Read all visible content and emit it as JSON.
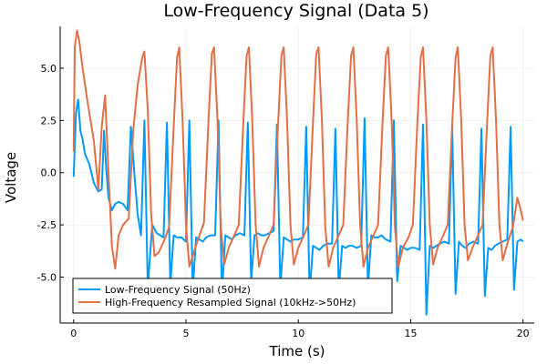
{
  "chart_data": {
    "type": "line",
    "title": "Low-Frequency Signal (Data 5)",
    "xlabel": "Time (s)",
    "ylabel": "Voltage",
    "xlim": [
      -0.6,
      20.5
    ],
    "ylim": [
      -7.2,
      7.0
    ],
    "x_ticks": [
      0,
      5,
      10,
      15,
      20
    ],
    "x_tick_labels": [
      "0",
      "5",
      "10",
      "15",
      "20"
    ],
    "y_ticks": [
      -5.0,
      -2.5,
      0.0,
      2.5,
      5.0
    ],
    "y_tick_labels": [
      "-5.0",
      "-2.5",
      "0.0",
      "2.5",
      "5.0"
    ],
    "grid": true,
    "legend_position": "bottom-left",
    "series": [
      {
        "name": "Low-Frequency Signal (50Hz)",
        "color": "#009AFA",
        "x": [
          0.0,
          0.1,
          0.2,
          0.3,
          0.4,
          0.5,
          0.7,
          0.9,
          1.1,
          1.25,
          1.35,
          1.45,
          1.55,
          1.7,
          1.85,
          2.0,
          2.2,
          2.4,
          2.55,
          2.7,
          2.85,
          3.0,
          3.15,
          3.3,
          3.5,
          3.7,
          3.85,
          4.0,
          4.15,
          4.3,
          4.45,
          4.6,
          4.8,
          5.0,
          5.15,
          5.3,
          5.45,
          5.6,
          5.75,
          5.9,
          6.1,
          6.3,
          6.45,
          6.6,
          6.75,
          6.9,
          7.05,
          7.2,
          7.4,
          7.6,
          7.75,
          7.9,
          8.05,
          8.2,
          8.35,
          8.5,
          8.7,
          8.9,
          9.05,
          9.2,
          9.35,
          9.5,
          9.65,
          9.8,
          10.0,
          10.2,
          10.35,
          10.5,
          10.65,
          10.8,
          10.95,
          11.1,
          11.3,
          11.5,
          11.65,
          11.8,
          11.95,
          12.1,
          12.25,
          12.4,
          12.6,
          12.8,
          12.95,
          13.1,
          13.25,
          13.4,
          13.55,
          13.7,
          13.9,
          14.1,
          14.25,
          14.4,
          14.55,
          14.7,
          14.85,
          15.0,
          15.2,
          15.4,
          15.55,
          15.7,
          15.85,
          16.0,
          16.15,
          16.3,
          16.5,
          16.7,
          16.85,
          17.0,
          17.15,
          17.3,
          17.45,
          17.6,
          17.8,
          18.0,
          18.15,
          18.3,
          18.45,
          18.6,
          18.75,
          18.9,
          19.1,
          19.3,
          19.45,
          19.6,
          19.75,
          19.9,
          20.0
        ],
        "y": [
          -0.2,
          2.8,
          3.5,
          2.0,
          1.6,
          0.9,
          0.4,
          -0.5,
          -0.9,
          -0.8,
          2.0,
          0.2,
          -1.2,
          -1.8,
          -1.5,
          -1.4,
          -1.5,
          -1.8,
          2.2,
          0.0,
          -2.0,
          -3.0,
          2.5,
          -5.5,
          -2.5,
          -2.9,
          -3.0,
          -3.1,
          2.4,
          -5.4,
          -3.0,
          -3.1,
          -3.1,
          -3.3,
          2.5,
          -5.6,
          -3.1,
          -3.2,
          -3.3,
          -3.1,
          -3.0,
          -3.0,
          2.5,
          -5.8,
          -3.0,
          -3.1,
          -3.2,
          -3.0,
          -2.9,
          -3.0,
          2.4,
          -5.2,
          -3.0,
          -2.9,
          -3.0,
          -3.0,
          -2.9,
          -2.8,
          2.3,
          -5.5,
          -3.1,
          -3.2,
          -3.3,
          -3.2,
          -3.2,
          -3.1,
          2.2,
          -5.8,
          -3.5,
          -3.6,
          -3.7,
          -3.5,
          -3.4,
          -3.4,
          2.1,
          -5.6,
          -3.5,
          -3.6,
          -3.5,
          -3.5,
          -3.6,
          -3.5,
          2.6,
          -5.5,
          -3.0,
          -3.1,
          -3.1,
          -3.0,
          -3.2,
          -3.3,
          2.5,
          -5.2,
          -3.5,
          -3.6,
          -3.7,
          -3.6,
          -3.6,
          -3.7,
          2.3,
          -6.8,
          -3.5,
          -3.6,
          -3.5,
          -3.4,
          -3.3,
          -3.4,
          2.2,
          -5.8,
          -3.3,
          -3.5,
          -3.6,
          -3.4,
          -3.3,
          -3.4,
          2.1,
          -5.9,
          -3.6,
          -3.7,
          -3.5,
          -3.4,
          -3.3,
          -3.2,
          2.2,
          -5.6,
          -3.3,
          -3.2,
          -3.3
        ],
        "line_width": 2
      },
      {
        "name": "High-Frequency Resampled Signal (10kHz->50Hz)",
        "color": "#E26F46",
        "x": [
          0.0,
          0.05,
          0.15,
          0.25,
          0.4,
          0.6,
          0.9,
          1.1,
          1.25,
          1.4,
          1.55,
          1.7,
          1.85,
          2.0,
          2.2,
          2.45,
          2.65,
          2.85,
          3.05,
          3.15,
          3.3,
          3.45,
          3.6,
          3.8,
          4.05,
          4.25,
          4.45,
          4.6,
          4.7,
          4.85,
          5.0,
          5.15,
          5.35,
          5.6,
          5.8,
          6.0,
          6.15,
          6.25,
          6.4,
          6.55,
          6.7,
          6.9,
          7.15,
          7.35,
          7.55,
          7.7,
          7.8,
          7.95,
          8.1,
          8.25,
          8.45,
          8.7,
          8.9,
          9.1,
          9.25,
          9.35,
          9.5,
          9.65,
          9.8,
          10.0,
          10.25,
          10.45,
          10.65,
          10.8,
          10.9,
          11.05,
          11.2,
          11.35,
          11.55,
          11.8,
          12.0,
          12.2,
          12.35,
          12.45,
          12.6,
          12.75,
          12.9,
          13.1,
          13.35,
          13.55,
          13.75,
          13.9,
          14.0,
          14.15,
          14.3,
          14.45,
          14.65,
          14.9,
          15.1,
          15.3,
          15.45,
          15.55,
          15.7,
          15.85,
          16.0,
          16.2,
          16.45,
          16.65,
          16.85,
          17.0,
          17.1,
          17.25,
          17.4,
          17.55,
          17.75,
          18.0,
          18.2,
          18.4,
          18.55,
          18.65,
          18.8,
          18.95,
          19.1,
          19.3,
          19.55,
          19.75,
          19.9,
          20.0
        ],
        "y": [
          1.0,
          6.0,
          6.8,
          6.3,
          5.0,
          3.5,
          1.5,
          -0.8,
          2.2,
          3.7,
          0.0,
          -3.5,
          -4.6,
          -3.0,
          -2.5,
          -2.2,
          2.0,
          4.2,
          5.5,
          5.8,
          3.0,
          -2.0,
          -4.0,
          -3.8,
          -3.2,
          -2.6,
          2.2,
          5.5,
          6.0,
          2.5,
          -2.5,
          -4.5,
          -3.8,
          -3.0,
          -2.4,
          2.5,
          5.7,
          6.0,
          2.6,
          -2.6,
          -4.4,
          -3.6,
          -3.0,
          -2.5,
          2.4,
          5.6,
          6.0,
          2.5,
          -2.5,
          -4.5,
          -3.6,
          -3.0,
          -2.5,
          2.4,
          5.6,
          6.0,
          2.5,
          -2.5,
          -4.4,
          -3.6,
          -3.0,
          -2.5,
          2.4,
          5.7,
          6.0,
          2.5,
          -2.6,
          -4.5,
          -3.6,
          -3.0,
          -2.5,
          2.5,
          5.6,
          6.0,
          2.5,
          -2.5,
          -4.5,
          -3.6,
          -3.0,
          -2.5,
          2.4,
          5.6,
          6.0,
          2.6,
          -2.6,
          -4.5,
          -3.6,
          -3.1,
          -2.5,
          2.4,
          5.5,
          6.0,
          2.5,
          -2.5,
          -4.4,
          -3.6,
          -3.0,
          -2.5,
          2.3,
          5.5,
          6.0,
          2.5,
          -2.5,
          -4.2,
          -3.6,
          -3.0,
          -2.5,
          2.3,
          5.6,
          6.0,
          2.5,
          -2.5,
          -4.2,
          -3.4,
          -2.6,
          -1.2,
          -1.8,
          -2.3
        ],
        "line_width": 2
      }
    ]
  }
}
